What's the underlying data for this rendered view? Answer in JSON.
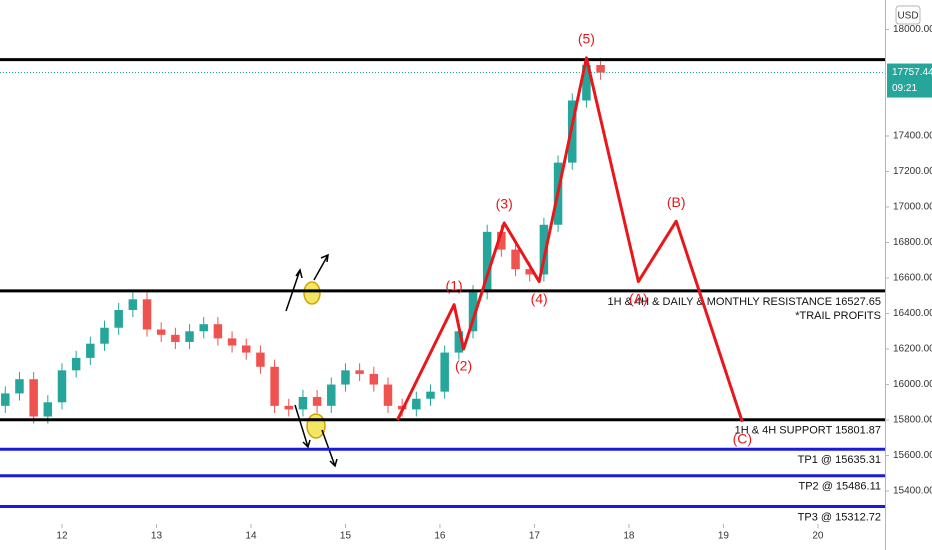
{
  "chart_data": {
    "type": "candlestick",
    "currency": "USD",
    "xlim": [
      11.344,
      20.71
    ],
    "xticks": [
      12,
      13,
      14,
      15,
      16,
      17,
      18,
      19,
      20
    ],
    "ylim": [
      15068,
      18166
    ],
    "yticks": [
      {
        "value": 18000,
        "label": "18000.00"
      },
      {
        "value": 17400,
        "label": "17400.00"
      },
      {
        "value": 17200,
        "label": "17200.00"
      },
      {
        "value": 17000,
        "label": "17000.00"
      },
      {
        "value": 16800,
        "label": "16800.00"
      },
      {
        "value": 16600,
        "label": "16600.00"
      },
      {
        "value": 16400,
        "label": "16400.00"
      },
      {
        "value": 16200,
        "label": "16200.00"
      },
      {
        "value": 16000,
        "label": "16000.00"
      },
      {
        "value": 15800,
        "label": "15800.00"
      },
      {
        "value": 15600,
        "label": "15600.00"
      },
      {
        "value": 15400,
        "label": "15400.00"
      }
    ],
    "up_color": "#26a69a",
    "down_color": "#ef5350",
    "candles": {
      "x": [
        11.4,
        11.55,
        11.7,
        11.85,
        12.0,
        12.15,
        12.3,
        12.45,
        12.6,
        12.75,
        12.9,
        13.05,
        13.2,
        13.35,
        13.5,
        13.65,
        13.8,
        13.95,
        14.1,
        14.25,
        14.4,
        14.55,
        14.7,
        14.85,
        15.0,
        15.15,
        15.3,
        15.45,
        15.6,
        15.75,
        15.9,
        16.05,
        16.2,
        16.35,
        16.5,
        16.65,
        16.8,
        16.95,
        17.1,
        17.25,
        17.4,
        17.55,
        17.7
      ],
      "open": [
        15880,
        15950,
        16030,
        15820,
        15900,
        16080,
        16150,
        16230,
        16320,
        16420,
        16480,
        16310,
        16280,
        16240,
        16300,
        16340,
        16260,
        16220,
        16180,
        16100,
        15880,
        15860,
        15930,
        15880,
        16000,
        16080,
        16060,
        16000,
        15880,
        15860,
        15920,
        15960,
        16180,
        16300,
        16520,
        16860,
        16760,
        16650,
        16620,
        16900,
        17250,
        17600,
        17800
      ],
      "high": [
        15990,
        16070,
        16070,
        15940,
        16120,
        16190,
        16270,
        16360,
        16460,
        16520,
        16520,
        16350,
        16320,
        16340,
        16380,
        16380,
        16300,
        16260,
        16220,
        16140,
        15920,
        15970,
        15970,
        16040,
        16120,
        16120,
        16100,
        16040,
        15920,
        15960,
        16000,
        16220,
        16340,
        16560,
        16900,
        16900,
        16800,
        16690,
        16940,
        17290,
        17640,
        17840,
        17840
      ],
      "low": [
        15840,
        15910,
        15780,
        15780,
        15860,
        16040,
        16110,
        16190,
        16280,
        16380,
        16270,
        16240,
        16200,
        16200,
        16260,
        16220,
        16180,
        16140,
        16060,
        15840,
        15820,
        15820,
        15840,
        15840,
        15960,
        16020,
        15960,
        15840,
        15820,
        15820,
        15880,
        15920,
        16140,
        16260,
        16480,
        16720,
        16610,
        16580,
        16580,
        16860,
        17210,
        17560,
        17717
      ],
      "close": [
        15950,
        16030,
        15820,
        15900,
        16080,
        16150,
        16230,
        16320,
        16420,
        16480,
        16310,
        16280,
        16240,
        16300,
        16340,
        16260,
        16220,
        16180,
        16100,
        15880,
        15860,
        15930,
        15880,
        16000,
        16080,
        16060,
        16000,
        15880,
        15860,
        15920,
        15960,
        16180,
        16300,
        16520,
        16860,
        16760,
        16650,
        16620,
        16900,
        17250,
        17600,
        17800,
        17757
      ]
    },
    "last_price": {
      "value": 17757.44,
      "label": "17757.44",
      "countdown": "09:21",
      "color": "#26a69a"
    },
    "levels": [
      {
        "value": 17830,
        "color": "#000000"
      },
      {
        "value": 16527.65,
        "color": "#000000",
        "label": "1H & 4H & DAILY & MONTHLY RESISTANCE 16527.65",
        "note": "*TRAIL PROFITS"
      },
      {
        "value": 15801.87,
        "color": "#000000",
        "label": "1H & 4H SUPPORT 15801.87"
      },
      {
        "value": 15635.31,
        "color": "#1a1adb",
        "label": "TP1 @ 15635.31"
      },
      {
        "value": 15486.11,
        "color": "#1a1adb",
        "label": "TP2 @ 15486.11"
      },
      {
        "value": 15312.72,
        "color": "#1a1adb",
        "label": "TP3 @ 15312.72"
      }
    ],
    "wave": {
      "color": "#e8171c",
      "x": [
        15.55,
        16.15,
        16.25,
        16.68,
        17.05,
        17.55,
        18.1,
        18.5,
        19.2
      ],
      "values": [
        15800,
        16450,
        16200,
        16910,
        16580,
        17840,
        16580,
        16920,
        15790
      ],
      "labels": [
        null,
        "(1)",
        "(2)",
        "(3)",
        "(4)",
        "(5)",
        "(A)",
        "(B)",
        "(C)"
      ]
    }
  }
}
